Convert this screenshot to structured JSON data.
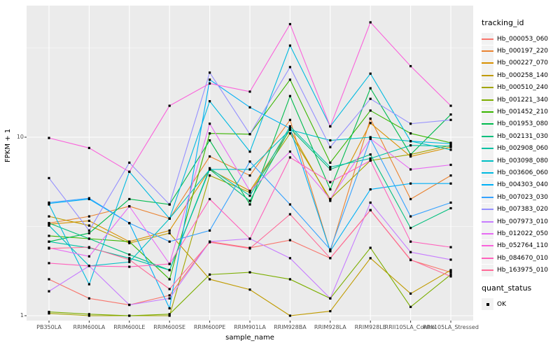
{
  "chart_data": {
    "type": "line",
    "title": "",
    "xlabel": "sample_name",
    "ylabel": "FPKM + 1",
    "yscale": "log10",
    "ylim": [
      1,
      55
    ],
    "yticks": [
      {
        "label": "1",
        "value": 1
      },
      {
        "label": "10",
        "value": 10
      }
    ],
    "minor_gridline_values": [
      3.162,
      31.62
    ],
    "grid": "on",
    "panel_background": "#ebebeb",
    "gridline_color": "#ffffff",
    "point_shape": "black-square",
    "point_color": "#000000",
    "categories": [
      "PB350LA",
      "RRIM600LA",
      "RRIM600LE",
      "RRIM600SE",
      "RRIM600PE",
      "RRIM901LA",
      "RRIM928BA",
      "RRIM928LA",
      "RRIM928LE",
      "RRII105LA_Control",
      "RRII105LA_Stressed"
    ],
    "series": [
      {
        "name": "Hb_000053_060",
        "color": "#F8766D",
        "values": [
          1.6,
          1.25,
          1.15,
          1.3,
          2.6,
          2.4,
          2.65,
          2.1,
          3.9,
          2.05,
          1.75
        ]
      },
      {
        "name": "Hb_000197_220",
        "color": "#EA8331",
        "values": [
          3.3,
          3.6,
          4.1,
          3.5,
          7.8,
          6.1,
          12.5,
          2.3,
          12.7,
          4.5,
          6.1
        ]
      },
      {
        "name": "Hb_000227_070",
        "color": "#D89000",
        "values": [
          3.25,
          3.4,
          2.6,
          3.0,
          6.6,
          5.0,
          11.0,
          4.4,
          12.0,
          7.8,
          8.8
        ]
      },
      {
        "name": "Hb_000258_140",
        "color": "#C09B00",
        "values": [
          3.6,
          3.2,
          2.55,
          2.9,
          1.6,
          1.4,
          1.0,
          1.06,
          2.1,
          1.33,
          1.8
        ]
      },
      {
        "name": "Hb_000510_240",
        "color": "#A3A500",
        "values": [
          1.03,
          1.0,
          1.0,
          1.0,
          6.1,
          4.9,
          10.5,
          4.5,
          7.4,
          8.0,
          9.0
        ]
      },
      {
        "name": "Hb_001221_340",
        "color": "#7CAE00",
        "values": [
          1.05,
          1.02,
          1.0,
          1.02,
          1.7,
          1.75,
          1.6,
          1.25,
          2.4,
          1.12,
          1.7
        ]
      },
      {
        "name": "Hb_001452_210",
        "color": "#39B600",
        "values": [
          2.8,
          2.7,
          2.6,
          1.6,
          10.5,
          10.4,
          21.0,
          7.2,
          14.1,
          10.5,
          9.3
        ]
      },
      {
        "name": "Hb_001953_080",
        "color": "#00BB4E",
        "values": [
          2.6,
          2.9,
          4.5,
          4.2,
          9.6,
          4.2,
          17.0,
          5.1,
          18.8,
          8.0,
          13.4
        ]
      },
      {
        "name": "Hb_002131_030",
        "color": "#00BF7D",
        "values": [
          3.3,
          2.7,
          2.2,
          1.8,
          6.6,
          4.4,
          11.2,
          6.6,
          8.0,
          3.1,
          4.0
        ]
      },
      {
        "name": "Hb_002908_060",
        "color": "#00C1A3",
        "values": [
          2.6,
          2.4,
          2.1,
          1.8,
          6.7,
          4.7,
          11.5,
          6.8,
          7.6,
          9.0,
          8.9
        ]
      },
      {
        "name": "Hb_003098_080",
        "color": "#00BFC4",
        "values": [
          3.2,
          1.9,
          2.0,
          3.5,
          6.6,
          6.6,
          11.0,
          9.6,
          10.0,
          9.5,
          8.5
        ]
      },
      {
        "name": "Hb_003606_060",
        "color": "#00BAE0",
        "values": [
          4.2,
          1.5,
          6.4,
          3.5,
          15.9,
          8.3,
          32.6,
          11.5,
          22.7,
          9.5,
          9.2
        ]
      },
      {
        "name": "Hb_004303_040",
        "color": "#00B0F6",
        "values": [
          4.25,
          4.5,
          3.3,
          1.1,
          21.0,
          14.7,
          11.2,
          2.3,
          5.1,
          5.5,
          5.5
        ]
      },
      {
        "name": "Hb_007023_030",
        "color": "#35A2FF",
        "values": [
          4.3,
          4.55,
          3.3,
          2.6,
          3.0,
          7.3,
          4.2,
          2.35,
          9.8,
          3.6,
          4.3
        ]
      },
      {
        "name": "Hb_007383_020",
        "color": "#9590FF",
        "values": [
          5.9,
          3.0,
          7.2,
          4.2,
          23.0,
          10.4,
          24.7,
          8.8,
          16.4,
          11.9,
          12.5
        ]
      },
      {
        "name": "Hb_007973_010",
        "color": "#C77CFF",
        "values": [
          1.37,
          1.9,
          1.15,
          1.25,
          2.6,
          2.7,
          2.1,
          1.25,
          4.3,
          2.27,
          2.06
        ]
      },
      {
        "name": "Hb_012022_050",
        "color": "#E76BF3",
        "values": [
          2.4,
          2.15,
          4.1,
          1.95,
          11.9,
          5.0,
          8.3,
          4.5,
          9.8,
          6.6,
          7.0
        ]
      },
      {
        "name": "Hb_052764_110",
        "color": "#FA62DB",
        "values": [
          9.9,
          8.7,
          6.4,
          15.0,
          20.0,
          18.0,
          43.0,
          11.5,
          44.0,
          25.0,
          15.0
        ]
      },
      {
        "name": "Hb_084670_010",
        "color": "#FF62BC",
        "values": [
          1.97,
          1.9,
          1.88,
          1.95,
          4.5,
          2.7,
          7.7,
          5.6,
          7.4,
          2.6,
          2.42
        ]
      },
      {
        "name": "Hb_163975_010",
        "color": "#FF6A98",
        "values": [
          2.38,
          2.42,
          2.06,
          1.41,
          2.58,
          2.38,
          3.7,
          2.1,
          3.9,
          2.06,
          1.66
        ]
      }
    ],
    "legend": {
      "position": "right",
      "tracking_title": "tracking_id",
      "quant_title": "quant_status",
      "quant_ok": "OK"
    }
  }
}
